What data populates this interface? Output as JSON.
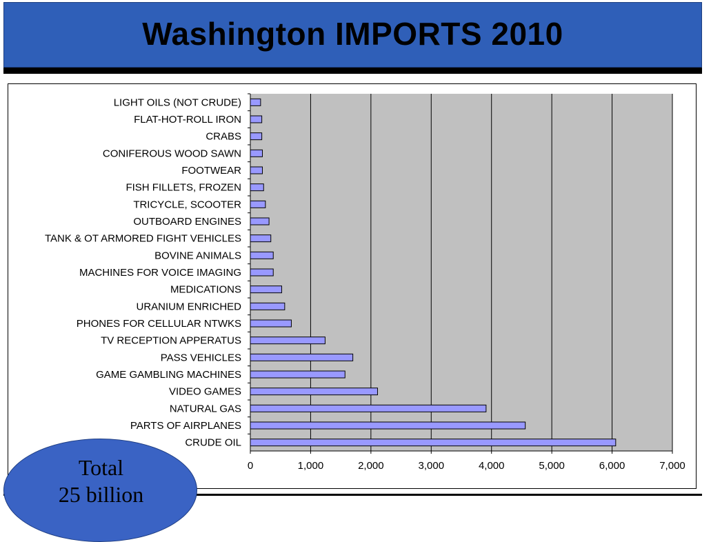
{
  "header": {
    "title": "Washington IMPORTS 2010"
  },
  "badge": {
    "line1": "Total",
    "line2": "25 billion"
  },
  "colors": {
    "header_bg": "#2f5fb8",
    "plot_bg": "#c0c0c0",
    "bar_fill": "#9999ff",
    "badge_bg": "#3a63c4"
  },
  "chart_data": {
    "type": "bar",
    "orientation": "horizontal",
    "title": "",
    "xlabel": "",
    "ylabel": "",
    "xlim": [
      0,
      7000
    ],
    "x_ticks": [
      "0",
      "1,000",
      "2,000",
      "3,000",
      "4,000",
      "5,000",
      "6,000",
      "7,000"
    ],
    "grid": true,
    "categories": [
      "LIGHT OILS (NOT CRUDE)",
      "FLAT-HOT-ROLL IRON",
      "CRABS",
      "CONIFEROUS WOOD SAWN",
      "FOOTWEAR",
      "FISH FILLETS, FROZEN",
      "TRICYCLE, SCOOTER",
      "OUTBOARD ENGINES",
      "TANK & OT ARMORED FIGHT VEHICLES",
      "BOVINE ANIMALS",
      "MACHINES FOR VOICE IMAGING",
      "MEDICATIONS",
      "URANIUM ENRICHED",
      "PHONES FOR CELLULAR NTWKS",
      "TV RECEPTION APPERATUS",
      "PASS VEHICLES",
      "GAME GAMBLING MACHINES",
      "VIDEO GAMES",
      "NATURAL GAS",
      "PARTS OF AIRPLANES",
      "CRUDE OIL"
    ],
    "values": [
      170,
      190,
      190,
      200,
      200,
      220,
      250,
      310,
      340,
      380,
      380,
      520,
      570,
      680,
      1240,
      1700,
      1570,
      2110,
      3910,
      4560,
      6060
    ]
  }
}
